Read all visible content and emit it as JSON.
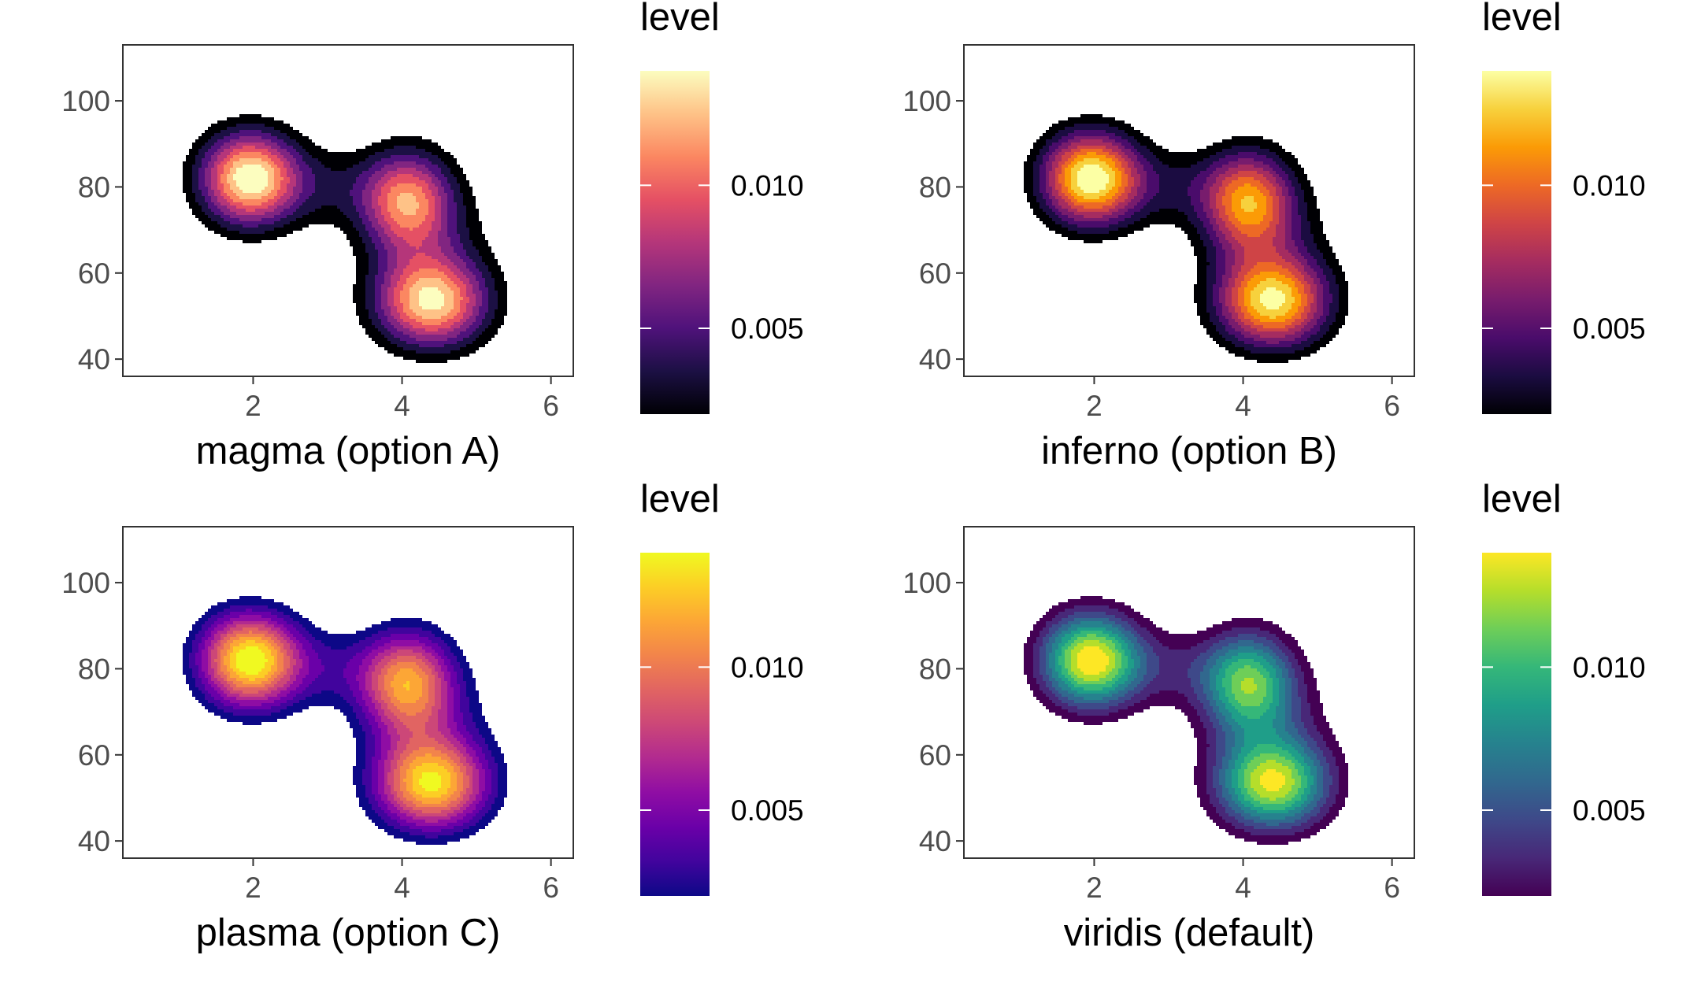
{
  "chart_data": [
    {
      "type": "density-contour",
      "palette": "magma",
      "xlabel": "magma (option A)",
      "legend_title": "level",
      "legend_labels": [
        "0.010",
        "0.005"
      ],
      "legend_breaks": [
        0.01,
        0.005
      ],
      "level_range": [
        0.002,
        0.014
      ],
      "colors": [
        "#000004",
        "#1c1044",
        "#4f127b",
        "#812581",
        "#b5367a",
        "#e55064",
        "#fb8761",
        "#fec287",
        "#fcfdbf"
      ],
      "xlim": [
        0.25,
        6.3
      ],
      "ylim": [
        36,
        113
      ],
      "x_ticks": [
        2,
        4,
        6
      ],
      "y_ticks": [
        40,
        60,
        80,
        100
      ],
      "x_tick_labels": [
        "2",
        "4",
        "6"
      ],
      "y_tick_labels": [
        "40",
        "60",
        "80",
        "100"
      ],
      "peaks": [
        {
          "x": 1.95,
          "y": 82,
          "level": 0.0138
        },
        {
          "x": 4.05,
          "y": 77,
          "level": 0.0108
        },
        {
          "x": 4.35,
          "y": 54,
          "level": 0.0118
        }
      ]
    },
    {
      "type": "density-contour",
      "palette": "inferno",
      "xlabel": "inferno (option B)",
      "legend_title": "level",
      "legend_labels": [
        "0.010",
        "0.005"
      ],
      "legend_breaks": [
        0.01,
        0.005
      ],
      "level_range": [
        0.002,
        0.014
      ],
      "colors": [
        "#000004",
        "#1b0c41",
        "#4a0c6b",
        "#781c6d",
        "#a52c60",
        "#cf4446",
        "#ed6925",
        "#fb9b06",
        "#f7d13d",
        "#fcffa4"
      ],
      "xlim": [
        0.25,
        6.3
      ],
      "ylim": [
        36,
        113
      ],
      "x_ticks": [
        2,
        4,
        6
      ],
      "y_ticks": [
        40,
        60,
        80,
        100
      ],
      "x_tick_labels": [
        "2",
        "4",
        "6"
      ],
      "y_tick_labels": [
        "40",
        "60",
        "80",
        "100"
      ],
      "peaks": [
        {
          "x": 1.95,
          "y": 82,
          "level": 0.0138
        },
        {
          "x": 4.05,
          "y": 77,
          "level": 0.0108
        },
        {
          "x": 4.35,
          "y": 54,
          "level": 0.0118
        }
      ]
    },
    {
      "type": "density-contour",
      "palette": "plasma",
      "xlabel": "plasma (option C)",
      "legend_title": "level",
      "legend_labels": [
        "0.010",
        "0.005"
      ],
      "legend_breaks": [
        0.01,
        0.005
      ],
      "level_range": [
        0.002,
        0.014
      ],
      "colors": [
        "#0d0887",
        "#41049d",
        "#6a00a8",
        "#8f0da4",
        "#b12a90",
        "#cc4778",
        "#e16462",
        "#f2844b",
        "#fca636",
        "#fcce25",
        "#f0f921"
      ],
      "xlim": [
        0.25,
        6.3
      ],
      "ylim": [
        36,
        113
      ],
      "x_ticks": [
        2,
        4,
        6
      ],
      "y_ticks": [
        40,
        60,
        80,
        100
      ],
      "x_tick_labels": [
        "2",
        "4",
        "6"
      ],
      "y_tick_labels": [
        "40",
        "60",
        "80",
        "100"
      ],
      "peaks": [
        {
          "x": 1.95,
          "y": 82,
          "level": 0.0138
        },
        {
          "x": 4.05,
          "y": 77,
          "level": 0.0108
        },
        {
          "x": 4.35,
          "y": 54,
          "level": 0.0118
        }
      ]
    },
    {
      "type": "density-contour",
      "palette": "viridis",
      "xlabel": "viridis (default)",
      "legend_title": "level",
      "legend_labels": [
        "0.010",
        "0.005"
      ],
      "legend_breaks": [
        0.01,
        0.005
      ],
      "level_range": [
        0.002,
        0.014
      ],
      "colors": [
        "#440154",
        "#482878",
        "#3e4989",
        "#31688e",
        "#26828e",
        "#1f9e89",
        "#35b779",
        "#6ece58",
        "#b5de2b",
        "#fde725"
      ],
      "xlim": [
        0.25,
        6.3
      ],
      "ylim": [
        36,
        113
      ],
      "x_ticks": [
        2,
        4,
        6
      ],
      "y_ticks": [
        40,
        60,
        80,
        100
      ],
      "x_tick_labels": [
        "2",
        "4",
        "6"
      ],
      "y_tick_labels": [
        "40",
        "60",
        "80",
        "100"
      ],
      "peaks": [
        {
          "x": 1.95,
          "y": 82,
          "level": 0.0138
        },
        {
          "x": 4.05,
          "y": 77,
          "level": 0.0108
        },
        {
          "x": 4.35,
          "y": 54,
          "level": 0.0118
        }
      ]
    }
  ]
}
